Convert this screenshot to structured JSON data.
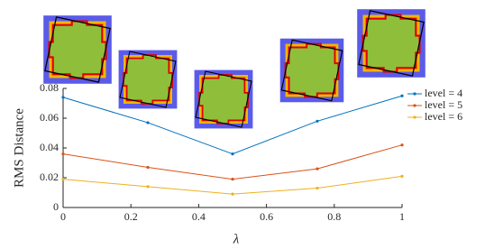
{
  "chart_data": {
    "type": "line",
    "x_label": "λ",
    "y_label": "RMS Distance",
    "x": [
      0,
      0.25,
      0.5,
      0.75,
      1
    ],
    "series": [
      {
        "name": "level = 4",
        "color": "#0072bd",
        "values": [
          0.074,
          0.057,
          0.036,
          0.058,
          0.075
        ]
      },
      {
        "name": "level = 5",
        "color": "#d95319",
        "values": [
          0.036,
          0.027,
          0.019,
          0.026,
          0.042
        ]
      },
      {
        "name": "level = 6",
        "color": "#edb120",
        "values": [
          0.019,
          0.014,
          0.009,
          0.013,
          0.021
        ]
      }
    ],
    "xlim": [
      0,
      1
    ],
    "xticks": [
      0,
      0.2,
      0.4,
      0.6,
      0.8,
      1
    ],
    "ylim": [
      0,
      0.08
    ],
    "yticks": [
      0,
      0.02,
      0.04,
      0.06,
      0.08
    ],
    "legend": "upper right",
    "grid": false
  }
}
